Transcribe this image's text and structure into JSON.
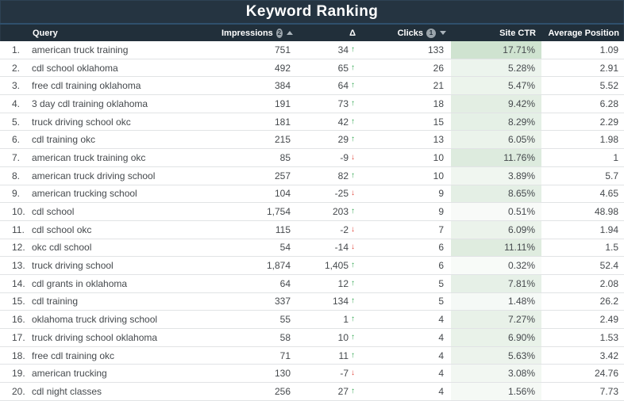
{
  "title": "Keyword Ranking",
  "columns": {
    "query": "Query",
    "impressions": "Impressions",
    "impressions_badge": "2",
    "delta": "Δ",
    "clicks": "Clicks",
    "clicks_badge": "1",
    "site_ctr": "Site CTR",
    "avg_position": "Average Position"
  },
  "icons": {
    "arrow_up": "↑",
    "arrow_down": "↓"
  },
  "colors": {
    "title_bar_bg": "#253441",
    "header_bg": "#212f3a",
    "divider": "#2f506c",
    "delta_up": "#34a853",
    "delta_down": "#e04438",
    "ctr_heat_min": "#f9fbf9",
    "ctr_heat_max": "#cfe3d0"
  },
  "ctr_heat_max_value": 17.71,
  "rows": [
    {
      "rank": "1.",
      "query": "american truck training",
      "impressions": "751",
      "delta": "34",
      "delta_dir": "up",
      "clicks": "133",
      "ctr": "17.71%",
      "ctr_value": 17.71,
      "avg_position": "1.09"
    },
    {
      "rank": "2.",
      "query": "cdl school oklahoma",
      "impressions": "492",
      "delta": "65",
      "delta_dir": "up",
      "clicks": "26",
      "ctr": "5.28%",
      "ctr_value": 5.28,
      "avg_position": "2.91"
    },
    {
      "rank": "3.",
      "query": "free cdl training oklahoma",
      "impressions": "384",
      "delta": "64",
      "delta_dir": "up",
      "clicks": "21",
      "ctr": "5.47%",
      "ctr_value": 5.47,
      "avg_position": "5.52"
    },
    {
      "rank": "4.",
      "query": "3 day cdl training oklahoma",
      "impressions": "191",
      "delta": "73",
      "delta_dir": "up",
      "clicks": "18",
      "ctr": "9.42%",
      "ctr_value": 9.42,
      "avg_position": "6.28"
    },
    {
      "rank": "5.",
      "query": "truck driving school okc",
      "impressions": "181",
      "delta": "42",
      "delta_dir": "up",
      "clicks": "15",
      "ctr": "8.29%",
      "ctr_value": 8.29,
      "avg_position": "2.29"
    },
    {
      "rank": "6.",
      "query": "cdl training okc",
      "impressions": "215",
      "delta": "29",
      "delta_dir": "up",
      "clicks": "13",
      "ctr": "6.05%",
      "ctr_value": 6.05,
      "avg_position": "1.98"
    },
    {
      "rank": "7.",
      "query": "american truck training okc",
      "impressions": "85",
      "delta": "-9",
      "delta_dir": "down",
      "clicks": "10",
      "ctr": "11.76%",
      "ctr_value": 11.76,
      "avg_position": "1"
    },
    {
      "rank": "8.",
      "query": "american truck driving school",
      "impressions": "257",
      "delta": "82",
      "delta_dir": "up",
      "clicks": "10",
      "ctr": "3.89%",
      "ctr_value": 3.89,
      "avg_position": "5.7"
    },
    {
      "rank": "9.",
      "query": "american trucking school",
      "impressions": "104",
      "delta": "-25",
      "delta_dir": "down",
      "clicks": "9",
      "ctr": "8.65%",
      "ctr_value": 8.65,
      "avg_position": "4.65"
    },
    {
      "rank": "10.",
      "query": "cdl school",
      "impressions": "1,754",
      "delta": "203",
      "delta_dir": "up",
      "clicks": "9",
      "ctr": "0.51%",
      "ctr_value": 0.51,
      "avg_position": "48.98"
    },
    {
      "rank": "11.",
      "query": "cdl school okc",
      "impressions": "115",
      "delta": "-2",
      "delta_dir": "down",
      "clicks": "7",
      "ctr": "6.09%",
      "ctr_value": 6.09,
      "avg_position": "1.94"
    },
    {
      "rank": "12.",
      "query": "okc cdl school",
      "impressions": "54",
      "delta": "-14",
      "delta_dir": "down",
      "clicks": "6",
      "ctr": "11.11%",
      "ctr_value": 11.11,
      "avg_position": "1.5"
    },
    {
      "rank": "13.",
      "query": "truck driving school",
      "impressions": "1,874",
      "delta": "1,405",
      "delta_dir": "up",
      "clicks": "6",
      "ctr": "0.32%",
      "ctr_value": 0.32,
      "avg_position": "52.4"
    },
    {
      "rank": "14.",
      "query": "cdl grants in oklahoma",
      "impressions": "64",
      "delta": "12",
      "delta_dir": "up",
      "clicks": "5",
      "ctr": "7.81%",
      "ctr_value": 7.81,
      "avg_position": "2.08"
    },
    {
      "rank": "15.",
      "query": "cdl training",
      "impressions": "337",
      "delta": "134",
      "delta_dir": "up",
      "clicks": "5",
      "ctr": "1.48%",
      "ctr_value": 1.48,
      "avg_position": "26.2"
    },
    {
      "rank": "16.",
      "query": "oklahoma truck driving school",
      "impressions": "55",
      "delta": "1",
      "delta_dir": "up",
      "clicks": "4",
      "ctr": "7.27%",
      "ctr_value": 7.27,
      "avg_position": "2.49"
    },
    {
      "rank": "17.",
      "query": "truck driving school oklahoma",
      "impressions": "58",
      "delta": "10",
      "delta_dir": "up",
      "clicks": "4",
      "ctr": "6.90%",
      "ctr_value": 6.9,
      "avg_position": "1.53"
    },
    {
      "rank": "18.",
      "query": "free cdl training okc",
      "impressions": "71",
      "delta": "11",
      "delta_dir": "up",
      "clicks": "4",
      "ctr": "5.63%",
      "ctr_value": 5.63,
      "avg_position": "3.42"
    },
    {
      "rank": "19.",
      "query": "american trucking",
      "impressions": "130",
      "delta": "-7",
      "delta_dir": "down",
      "clicks": "4",
      "ctr": "3.08%",
      "ctr_value": 3.08,
      "avg_position": "24.76"
    },
    {
      "rank": "20.",
      "query": "cdl night classes",
      "impressions": "256",
      "delta": "27",
      "delta_dir": "up",
      "clicks": "4",
      "ctr": "1.56%",
      "ctr_value": 1.56,
      "avg_position": "7.73"
    }
  ]
}
